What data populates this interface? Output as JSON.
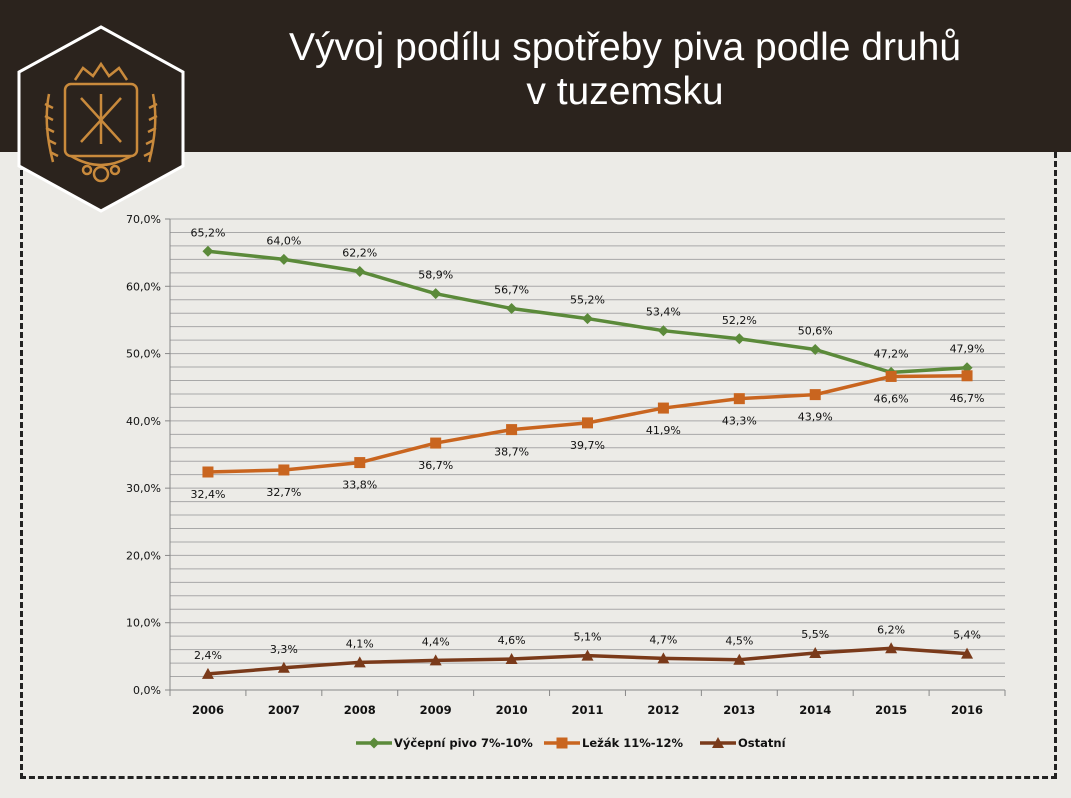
{
  "header": {
    "title_line1": "Vývoj podílu spotřeby piva podle druhů",
    "title_line2": "v tuzemsku"
  },
  "logo": {
    "icon": "brewery-emblem-icon"
  },
  "colors": {
    "header_bg": "#2b231d",
    "page_bg": "#ecebe7",
    "logo_gold": "#c98a3c",
    "series_green": "#5b8a3a",
    "series_orange": "#c9651f",
    "series_brown": "#7a3a1a"
  },
  "chart_data": {
    "type": "line",
    "x": [
      "2006",
      "2007",
      "2008",
      "2009",
      "2010",
      "2011",
      "2012",
      "2013",
      "2014",
      "2015",
      "2016"
    ],
    "y_ticks": [
      "0,0%",
      "10,0%",
      "20,0%",
      "30,0%",
      "40,0%",
      "50,0%",
      "60,0%",
      "70,0%"
    ],
    "ylim": [
      0,
      70
    ],
    "grid": true,
    "legend_position": "bottom",
    "series": [
      {
        "name": "Výčepní pivo 7%-10%",
        "marker": "diamond",
        "color": "#5b8a3a",
        "values": [
          65.2,
          64.0,
          62.2,
          58.9,
          56.7,
          55.2,
          53.4,
          52.2,
          50.6,
          47.2,
          47.9
        ],
        "labels": [
          "65,2%",
          "64,0%",
          "62,2%",
          "58,9%",
          "56,7%",
          "55,2%",
          "53,4%",
          "52,2%",
          "50,6%",
          "47,2%",
          "47,9%"
        ],
        "label_position": "above"
      },
      {
        "name": "Ležák 11%-12%",
        "marker": "square",
        "color": "#c9651f",
        "values": [
          32.4,
          32.7,
          33.8,
          36.7,
          38.7,
          39.7,
          41.9,
          43.3,
          43.9,
          46.6,
          46.7
        ],
        "labels": [
          "32,4%",
          "32,7%",
          "33,8%",
          "36,7%",
          "38,7%",
          "39,7%",
          "41,9%",
          "43,3%",
          "43,9%",
          "46,6%",
          "46,7%"
        ],
        "label_position": "below"
      },
      {
        "name": "Ostatní",
        "marker": "triangle",
        "color": "#7a3a1a",
        "values": [
          2.4,
          3.3,
          4.1,
          4.4,
          4.6,
          5.1,
          4.7,
          4.5,
          5.5,
          6.2,
          5.4
        ],
        "labels": [
          "2,4%",
          "3,3%",
          "4,1%",
          "4,4%",
          "4,6%",
          "5,1%",
          "4,7%",
          "4,5%",
          "5,5%",
          "6,2%",
          "5,4%"
        ],
        "label_position": "above"
      }
    ]
  }
}
